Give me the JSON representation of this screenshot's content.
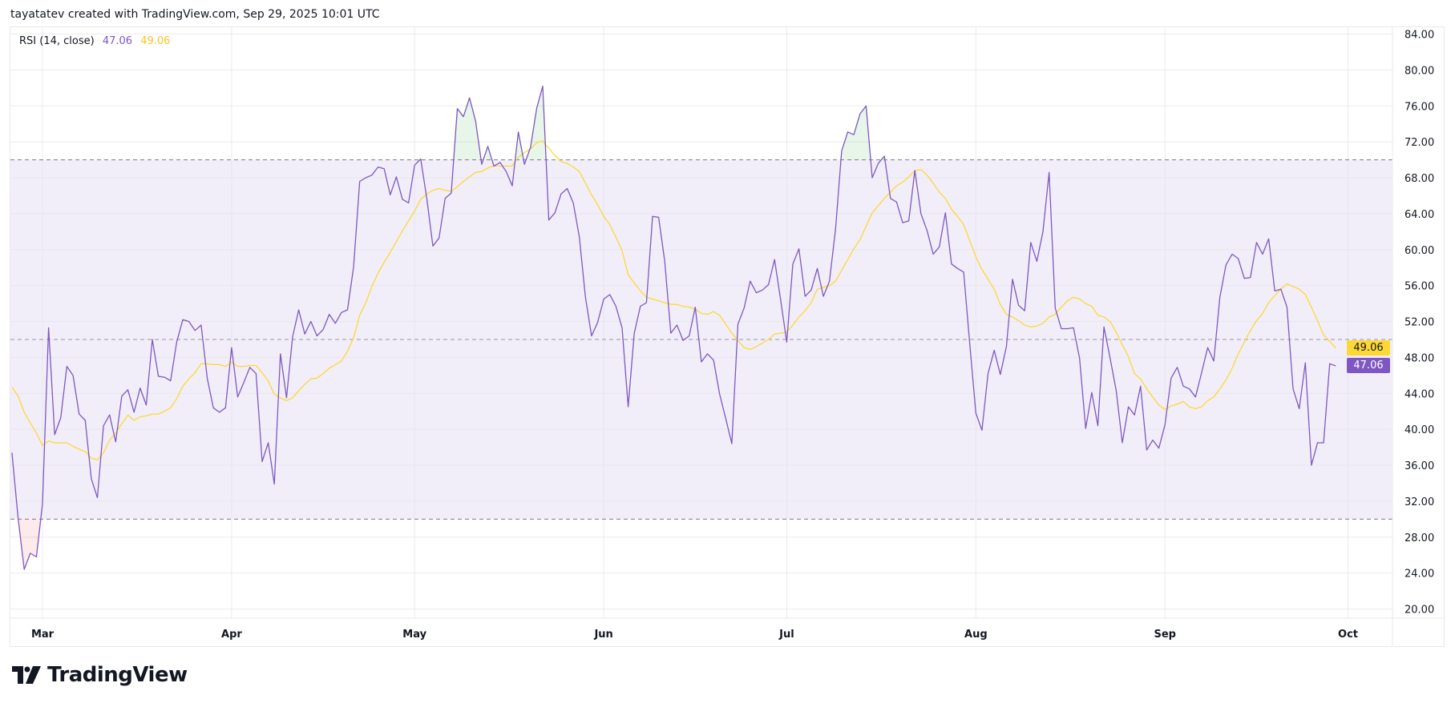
{
  "header": {
    "attribution": "tayatatev created with TradingView.com, Sep 29, 2025 10:01 UTC"
  },
  "legend": {
    "indicator": "RSI (14, close)",
    "rsi_value": "47.06",
    "ma_value": "49.06"
  },
  "price_labels": {
    "ma": "49.06",
    "rsi": "47.06"
  },
  "logo": {
    "text": "TradingView"
  },
  "colors": {
    "rsi": "#7e57c2",
    "ma": "#fdd835",
    "band": "#ede7f6",
    "dashed": "#787b86",
    "grid": "#f0f0f3",
    "text": "#131722"
  },
  "chart_data": {
    "type": "line",
    "title": "",
    "xlabel": "",
    "ylabel": "",
    "ylim": [
      20,
      84
    ],
    "y_ticks": [
      "20.00",
      "24.00",
      "28.00",
      "32.00",
      "36.00",
      "40.00",
      "44.00",
      "48.00",
      "52.00",
      "56.00",
      "60.00",
      "64.00",
      "68.00",
      "72.00",
      "76.00",
      "80.00",
      "84.00"
    ],
    "x_ticks": [
      {
        "label": "Mar",
        "date": "2025-03-01"
      },
      {
        "label": "Apr",
        "date": "2025-04-01"
      },
      {
        "label": "May",
        "date": "2025-05-01"
      },
      {
        "label": "Jun",
        "date": "2025-06-01"
      },
      {
        "label": "Jul",
        "date": "2025-07-01"
      },
      {
        "label": "Aug",
        "date": "2025-08-01"
      },
      {
        "label": "Sep",
        "date": "2025-09-01"
      },
      {
        "label": "Oct",
        "date": "2025-10-01"
      }
    ],
    "bands": {
      "upper": 70,
      "middle": 50,
      "lower": 30
    },
    "grid": true,
    "x": [
      "2025-02-24",
      "2025-02-25",
      "2025-02-26",
      "2025-02-27",
      "2025-02-28",
      "2025-03-01",
      "2025-03-02",
      "2025-03-03",
      "2025-03-04",
      "2025-03-05",
      "2025-03-06",
      "2025-03-07",
      "2025-03-08",
      "2025-03-09",
      "2025-03-10",
      "2025-03-11",
      "2025-03-12",
      "2025-03-13",
      "2025-03-14",
      "2025-03-15",
      "2025-03-16",
      "2025-03-17",
      "2025-03-18",
      "2025-03-19",
      "2025-03-20",
      "2025-03-21",
      "2025-03-22",
      "2025-03-23",
      "2025-03-24",
      "2025-03-25",
      "2025-03-26",
      "2025-03-27",
      "2025-03-28",
      "2025-03-29",
      "2025-03-30",
      "2025-03-31",
      "2025-04-01",
      "2025-04-02",
      "2025-04-03",
      "2025-04-04",
      "2025-04-05",
      "2025-04-06",
      "2025-04-07",
      "2025-04-08",
      "2025-04-09",
      "2025-04-10",
      "2025-04-11",
      "2025-04-12",
      "2025-04-13",
      "2025-04-14",
      "2025-04-15",
      "2025-04-16",
      "2025-04-17",
      "2025-04-18",
      "2025-04-19",
      "2025-04-20",
      "2025-04-21",
      "2025-04-22",
      "2025-04-23",
      "2025-04-24",
      "2025-04-25",
      "2025-04-26",
      "2025-04-27",
      "2025-04-28",
      "2025-04-29",
      "2025-04-30",
      "2025-05-01",
      "2025-05-02",
      "2025-05-03",
      "2025-05-04",
      "2025-05-05",
      "2025-05-06",
      "2025-05-07",
      "2025-05-08",
      "2025-05-09",
      "2025-05-10",
      "2025-05-11",
      "2025-05-12",
      "2025-05-13",
      "2025-05-14",
      "2025-05-15",
      "2025-05-16",
      "2025-05-17",
      "2025-05-18",
      "2025-05-19",
      "2025-05-20",
      "2025-05-21",
      "2025-05-22",
      "2025-05-23",
      "2025-05-24",
      "2025-05-25",
      "2025-05-26",
      "2025-05-27",
      "2025-05-28",
      "2025-05-29",
      "2025-05-30",
      "2025-05-31",
      "2025-06-01",
      "2025-06-02",
      "2025-06-03",
      "2025-06-04",
      "2025-06-05",
      "2025-06-06",
      "2025-06-07",
      "2025-06-08",
      "2025-06-09",
      "2025-06-10",
      "2025-06-11",
      "2025-06-12",
      "2025-06-13",
      "2025-06-14",
      "2025-06-15",
      "2025-06-16",
      "2025-06-17",
      "2025-06-18",
      "2025-06-19",
      "2025-06-20",
      "2025-06-21",
      "2025-06-22",
      "2025-06-23",
      "2025-06-24",
      "2025-06-25",
      "2025-06-26",
      "2025-06-27",
      "2025-06-28",
      "2025-06-29",
      "2025-06-30",
      "2025-07-01",
      "2025-07-02",
      "2025-07-03",
      "2025-07-04",
      "2025-07-05",
      "2025-07-06",
      "2025-07-07",
      "2025-07-08",
      "2025-07-09",
      "2025-07-10",
      "2025-07-11",
      "2025-07-12",
      "2025-07-13",
      "2025-07-14",
      "2025-07-15",
      "2025-07-16",
      "2025-07-17",
      "2025-07-18",
      "2025-07-19",
      "2025-07-20",
      "2025-07-21",
      "2025-07-22",
      "2025-07-23",
      "2025-07-24",
      "2025-07-25",
      "2025-07-26",
      "2025-07-27",
      "2025-07-28",
      "2025-07-29",
      "2025-07-30",
      "2025-07-31",
      "2025-08-01",
      "2025-08-02",
      "2025-08-03",
      "2025-08-04",
      "2025-08-05",
      "2025-08-06",
      "2025-08-07",
      "2025-08-08",
      "2025-08-09",
      "2025-08-10",
      "2025-08-11",
      "2025-08-12",
      "2025-08-13",
      "2025-08-14",
      "2025-08-15",
      "2025-08-16",
      "2025-08-17",
      "2025-08-18",
      "2025-08-19",
      "2025-08-20",
      "2025-08-21",
      "2025-08-22",
      "2025-08-23",
      "2025-08-24",
      "2025-08-25",
      "2025-08-26",
      "2025-08-27",
      "2025-08-28",
      "2025-08-29",
      "2025-08-30",
      "2025-08-31",
      "2025-09-01",
      "2025-09-02",
      "2025-09-03",
      "2025-09-04",
      "2025-09-05",
      "2025-09-06",
      "2025-09-07",
      "2025-09-08",
      "2025-09-09",
      "2025-09-10",
      "2025-09-11",
      "2025-09-12",
      "2025-09-13",
      "2025-09-14",
      "2025-09-15",
      "2025-09-16",
      "2025-09-17",
      "2025-09-18",
      "2025-09-19",
      "2025-09-20",
      "2025-09-21",
      "2025-09-22",
      "2025-09-23",
      "2025-09-24",
      "2025-09-25",
      "2025-09-26",
      "2025-09-27",
      "2025-09-28",
      "2025-09-29"
    ],
    "series": [
      {
        "name": "RSI",
        "color": "#7e57c2",
        "values": [
          37.4,
          30.1,
          24.4,
          26.2,
          25.8,
          31.7,
          51.3,
          39.4,
          41.3,
          47.0,
          46.0,
          41.7,
          41.0,
          34.5,
          32.4,
          40.4,
          41.6,
          38.6,
          43.7,
          44.4,
          41.9,
          44.6,
          42.7,
          50.0,
          45.9,
          45.8,
          45.4,
          49.7,
          52.2,
          52.0,
          51.0,
          51.6,
          45.7,
          42.4,
          41.9,
          42.4,
          49.1,
          43.6,
          45.2,
          46.9,
          46.2,
          36.4,
          38.5,
          33.9,
          48.4,
          43.5,
          50.3,
          53.3,
          50.6,
          52.0,
          50.4,
          51.1,
          52.8,
          51.8,
          53.0,
          53.3,
          58.1,
          67.6,
          68.0,
          68.3,
          69.2,
          69.0,
          66.1,
          68.1,
          65.6,
          65.2,
          69.4,
          70.1,
          65.7,
          60.4,
          61.3,
          65.7,
          66.3,
          75.7,
          74.8,
          76.9,
          74.3,
          69.5,
          71.5,
          69.3,
          69.7,
          68.7,
          67.1,
          73.1,
          69.5,
          71.4,
          75.7,
          78.2,
          63.3,
          64.1,
          66.2,
          66.8,
          65.2,
          61.4,
          54.7,
          50.4,
          51.9,
          54.5,
          55.0,
          53.7,
          51.3,
          42.5,
          50.7,
          53.7,
          54.1,
          63.7,
          63.6,
          58.7,
          50.7,
          51.6,
          49.9,
          50.4,
          53.6,
          47.5,
          48.4,
          47.7,
          43.9,
          41.2,
          38.4,
          51.7,
          53.5,
          56.5,
          55.2,
          55.5,
          56.1,
          58.9,
          54.4,
          49.7,
          58.4,
          60.1,
          54.8,
          55.5,
          57.9,
          54.8,
          56.5,
          62.3,
          71.0,
          73.1,
          72.8,
          75.1,
          76.0,
          68.0,
          69.6,
          70.4,
          65.7,
          65.3,
          63.0,
          63.2,
          68.8,
          64.0,
          62.1,
          59.5,
          60.3,
          64.1,
          58.4,
          57.9,
          57.5,
          49.5,
          41.8,
          39.9,
          46.2,
          48.8,
          46.1,
          49.2,
          56.7,
          53.8,
          53.2,
          60.8,
          58.7,
          62.0,
          68.6,
          53.5,
          51.2,
          51.2,
          51.3,
          47.9,
          40.1,
          44.1,
          40.4,
          51.4,
          47.9,
          44.3,
          38.5,
          42.5,
          41.6,
          44.8,
          37.7,
          38.8,
          37.9,
          40.5,
          45.7,
          46.9,
          44.8,
          44.5,
          43.6,
          46.3,
          49.1,
          47.6,
          54.7,
          58.3,
          59.5,
          59.0,
          56.8,
          56.9,
          60.8,
          59.5,
          61.2,
          55.4,
          55.6,
          53.6,
          44.5,
          42.3,
          47.4,
          36.0,
          38.5,
          38.5,
          47.3,
          47.06
        ]
      },
      {
        "name": "RSI-based MA",
        "color": "#fdd835",
        "values": [
          44.7,
          43.7,
          41.9,
          40.7,
          39.6,
          38.2,
          38.7,
          38.5,
          38.5,
          38.5,
          38.1,
          37.8,
          37.5,
          36.8,
          36.6,
          37.4,
          38.8,
          39.6,
          40.6,
          41.6,
          41.0,
          41.4,
          41.5,
          41.7,
          41.7,
          42.0,
          42.4,
          43.4,
          44.8,
          45.6,
          46.3,
          47.3,
          47.3,
          47.2,
          47.2,
          47.0,
          47.5,
          47.0,
          47.0,
          47.1,
          47.1,
          46.3,
          45.4,
          43.9,
          43.5,
          43.2,
          43.5,
          44.3,
          45.0,
          45.6,
          45.7,
          46.2,
          46.8,
          47.2,
          47.6,
          48.7,
          50.2,
          52.7,
          54.1,
          55.9,
          57.4,
          58.6,
          59.7,
          60.9,
          62.1,
          63.2,
          64.3,
          65.6,
          66.2,
          66.6,
          66.8,
          66.6,
          66.5,
          67.0,
          67.6,
          68.1,
          68.6,
          68.7,
          69.1,
          69.3,
          69.3,
          69.3,
          69.3,
          70.3,
          70.8,
          71.2,
          71.9,
          72.1,
          71.3,
          70.5,
          69.8,
          69.6,
          69.2,
          68.7,
          67.4,
          66.1,
          65.0,
          63.7,
          62.8,
          61.4,
          59.9,
          57.2,
          56.3,
          55.4,
          54.7,
          54.5,
          54.3,
          54.1,
          53.9,
          53.9,
          53.7,
          53.6,
          53.4,
          52.9,
          52.8,
          53.1,
          52.7,
          51.7,
          50.7,
          49.9,
          49.1,
          48.9,
          49.2,
          49.6,
          50.0,
          50.6,
          50.7,
          50.8,
          51.6,
          52.5,
          53.2,
          54.1,
          55.6,
          55.8,
          56.0,
          56.5,
          57.7,
          58.9,
          60.1,
          61.1,
          62.6,
          64.1,
          64.9,
          65.7,
          66.4,
          67.1,
          67.5,
          68.1,
          68.8,
          68.9,
          68.3,
          67.4,
          66.4,
          65.7,
          64.5,
          63.7,
          62.8,
          61.0,
          59.2,
          57.8,
          56.7,
          55.6,
          53.9,
          52.8,
          52.5,
          52.1,
          51.6,
          51.4,
          51.5,
          51.8,
          52.5,
          52.8,
          53.6,
          54.3,
          54.7,
          54.5,
          54.0,
          53.7,
          52.7,
          52.5,
          52.0,
          50.8,
          49.4,
          48.1,
          46.2,
          45.6,
          44.5,
          43.6,
          42.7,
          42.2,
          42.6,
          42.8,
          43.1,
          42.5,
          42.3,
          42.5,
          43.2,
          43.6,
          44.5,
          45.5,
          46.8,
          48.4,
          49.7,
          51.0,
          52.1,
          52.9,
          54.1,
          54.9,
          55.6,
          56.2,
          55.9,
          55.6,
          55.0,
          53.6,
          52.1,
          50.5,
          49.8,
          49.06
        ]
      }
    ]
  }
}
